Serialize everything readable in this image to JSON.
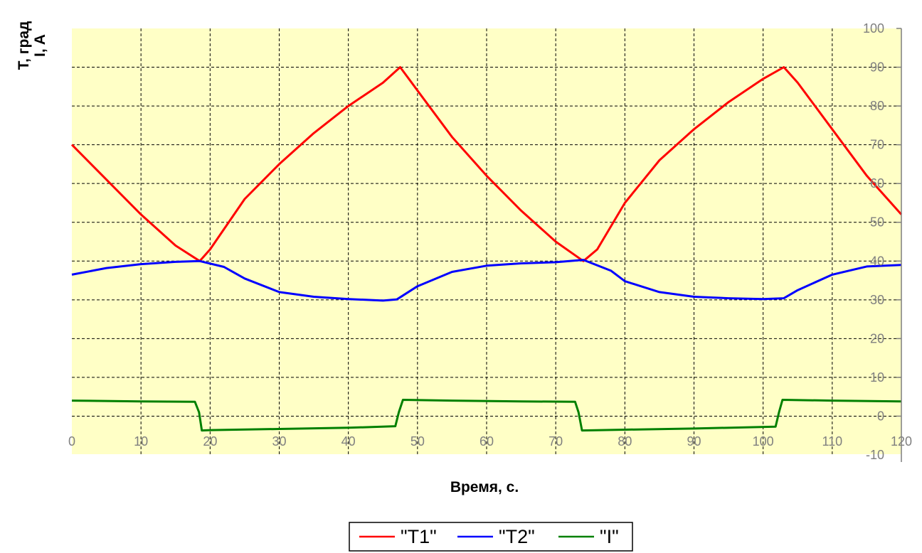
{
  "chart_data": {
    "type": "line",
    "title": "",
    "xlabel": "Время, с.",
    "ylabel_line1": "T, град",
    "ylabel_line2": "I, A",
    "xlim": [
      0,
      120
    ],
    "ylim": [
      -10,
      100
    ],
    "x_ticks": [
      0,
      10,
      20,
      30,
      40,
      50,
      60,
      70,
      80,
      90,
      100,
      110,
      120
    ],
    "y_ticks": [
      -10,
      0,
      10,
      20,
      30,
      40,
      50,
      60,
      70,
      80,
      90,
      100
    ],
    "grid": true,
    "plot_background": "#ffffc6",
    "legend_position": "bottom-center",
    "series": [
      {
        "name": "\"T1\"",
        "color": "#ff0000",
        "x": [
          0,
          5,
          10,
          15,
          18.5,
          20,
          25,
          30,
          35,
          40,
          45,
          47.5,
          50,
          55,
          60,
          65,
          70,
          74,
          76,
          80,
          85,
          90,
          95,
          100,
          103,
          105,
          110,
          115,
          120
        ],
        "y": [
          70,
          61,
          52,
          44,
          40,
          43,
          56,
          65,
          73,
          80,
          86,
          90,
          84,
          72,
          62,
          53,
          45,
          40,
          43,
          55,
          66,
          74,
          81,
          87,
          90,
          86,
          74,
          62,
          52
        ]
      },
      {
        "name": "\"T2\"",
        "color": "#0000ff",
        "x": [
          0,
          5,
          10,
          15,
          18.5,
          22,
          25,
          30,
          35,
          40,
          45,
          47,
          50,
          55,
          60,
          65,
          70,
          74,
          78,
          80,
          85,
          90,
          95,
          100,
          103,
          105,
          110,
          115,
          120
        ],
        "y": [
          36.5,
          38.2,
          39.2,
          39.8,
          40,
          38.5,
          35.5,
          32,
          30.8,
          30.2,
          29.8,
          30.1,
          33.5,
          37.2,
          38.8,
          39.4,
          39.7,
          40.3,
          37.5,
          34.8,
          32,
          30.8,
          30.4,
          30.2,
          30.4,
          32.5,
          36.5,
          38.6,
          39
        ]
      },
      {
        "name": "\"I\"",
        "color": "#008000",
        "x": [
          0,
          10,
          17.8,
          18.4,
          18.8,
          20,
          30,
          40,
          46.8,
          47.3,
          47.9,
          55,
          65,
          72.8,
          73.3,
          73.8,
          80,
          90,
          101.8,
          102.3,
          102.8,
          110,
          120
        ],
        "y": [
          4,
          3.8,
          3.7,
          1,
          -3.7,
          -3.6,
          -3.3,
          -3,
          -2.6,
          1,
          4.2,
          4,
          3.8,
          3.7,
          1,
          -3.7,
          -3.5,
          -3.2,
          -2.7,
          1,
          4.2,
          4,
          3.8
        ]
      }
    ]
  }
}
